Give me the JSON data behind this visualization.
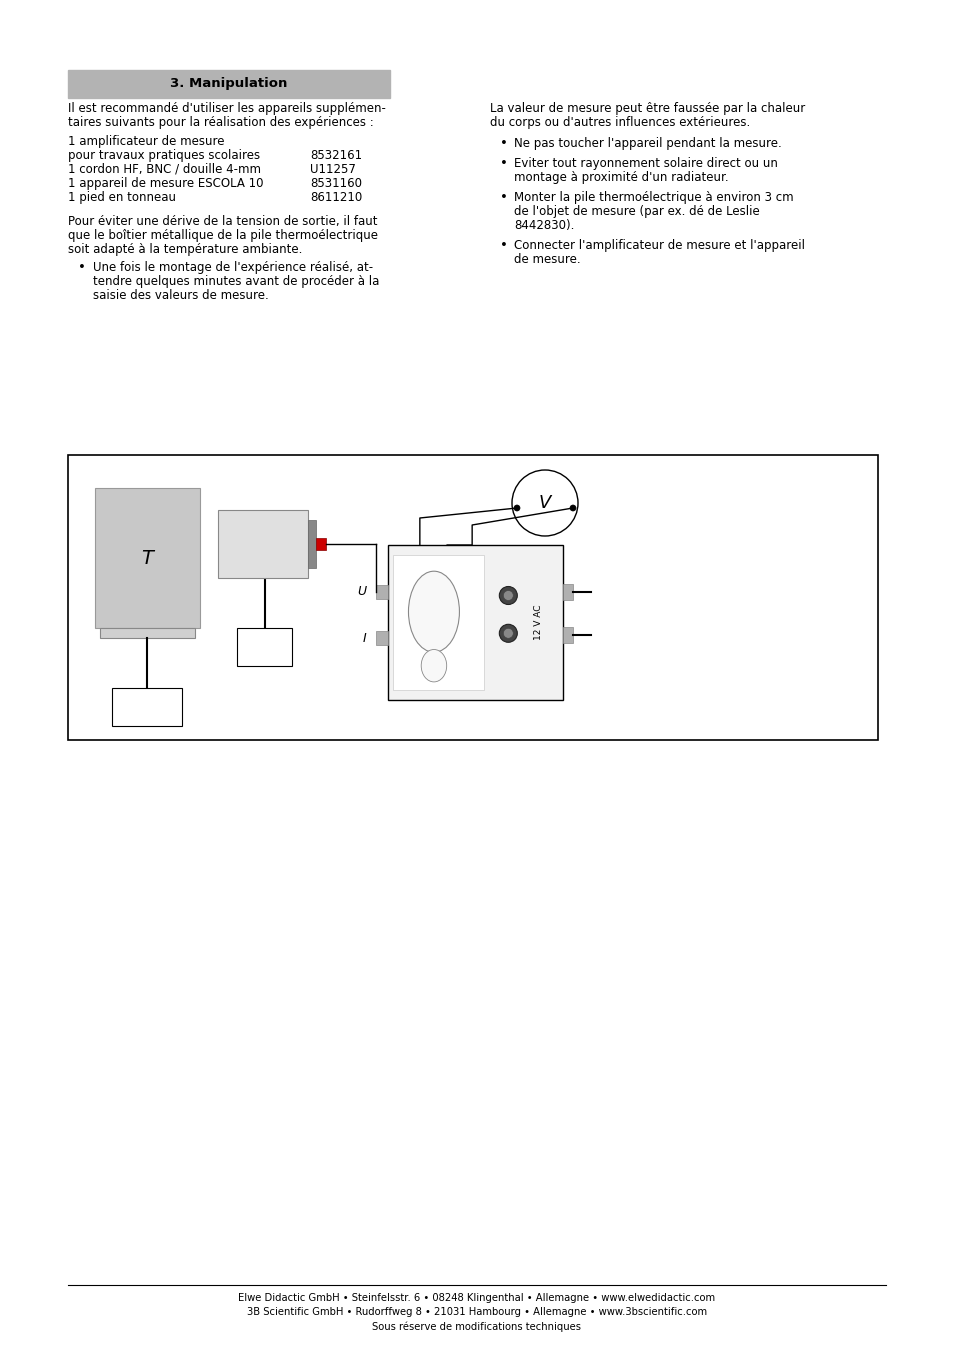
{
  "bg_color": "#ffffff",
  "title_box_color": "#b3b3b3",
  "title_text": "3. Manipulation",
  "title_fontsize": 9.5,
  "body_fontsize": 8.5,
  "footer_fontsize": 7.2,
  "footer_text1": "Elwe Didactic GmbH • Steinfelsstr. 6 • 08248 Klingenthal • Allemagne • www.elwedidactic.com",
  "footer_text2": "3B Scientific GmbH • Rudorffweg 8 • 21031 Hambourg • Allemagne • www.3bscientific.com",
  "footer_text3": "Sous réserve de modifications techniques"
}
